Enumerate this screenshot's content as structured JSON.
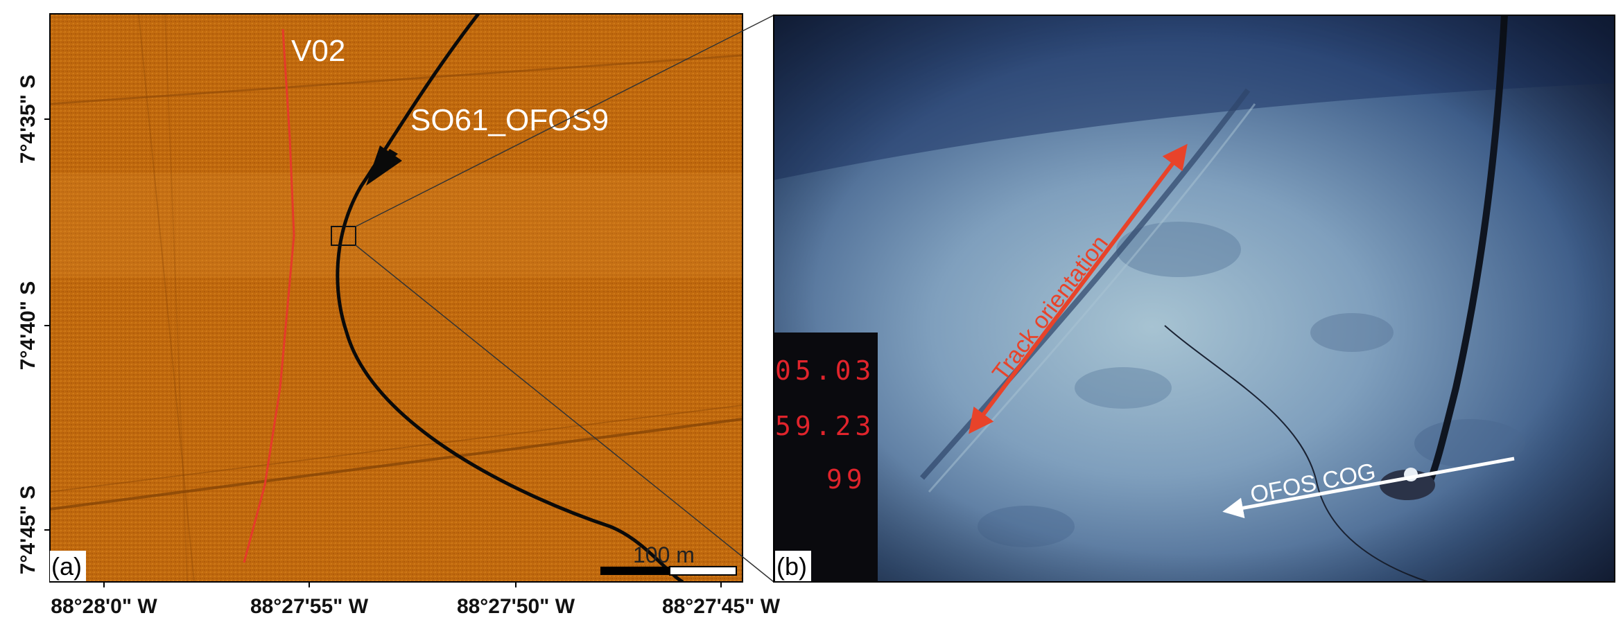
{
  "panel_a": {
    "label": "(a)",
    "y_ticks": [
      "7°4'35\" S",
      "7°4'40\" S",
      "7°4'45\" S"
    ],
    "x_ticks": [
      "88°28'0\" W",
      "88°27'55\" W",
      "88°27'50\" W",
      "88°27'45\" W"
    ],
    "track_labels": {
      "survey_line": "V02",
      "ofos_track": "SO61_OFOS9"
    },
    "scale_bar": "100 m",
    "colors": {
      "background": "#c0680c",
      "survey_line": "#e53a2a",
      "ofos_track": "#0a0a0a"
    }
  },
  "panel_b": {
    "label": "(b)",
    "readout": [
      "05.03",
      "59.23",
      "99"
    ],
    "annotations": {
      "track_orientation": "Track orientation",
      "ofos_cog": "OFOS COG"
    },
    "colors": {
      "track_orientation": "#e8432a",
      "ofos_cog": "#ffffff",
      "readout": "#e0242c"
    }
  }
}
